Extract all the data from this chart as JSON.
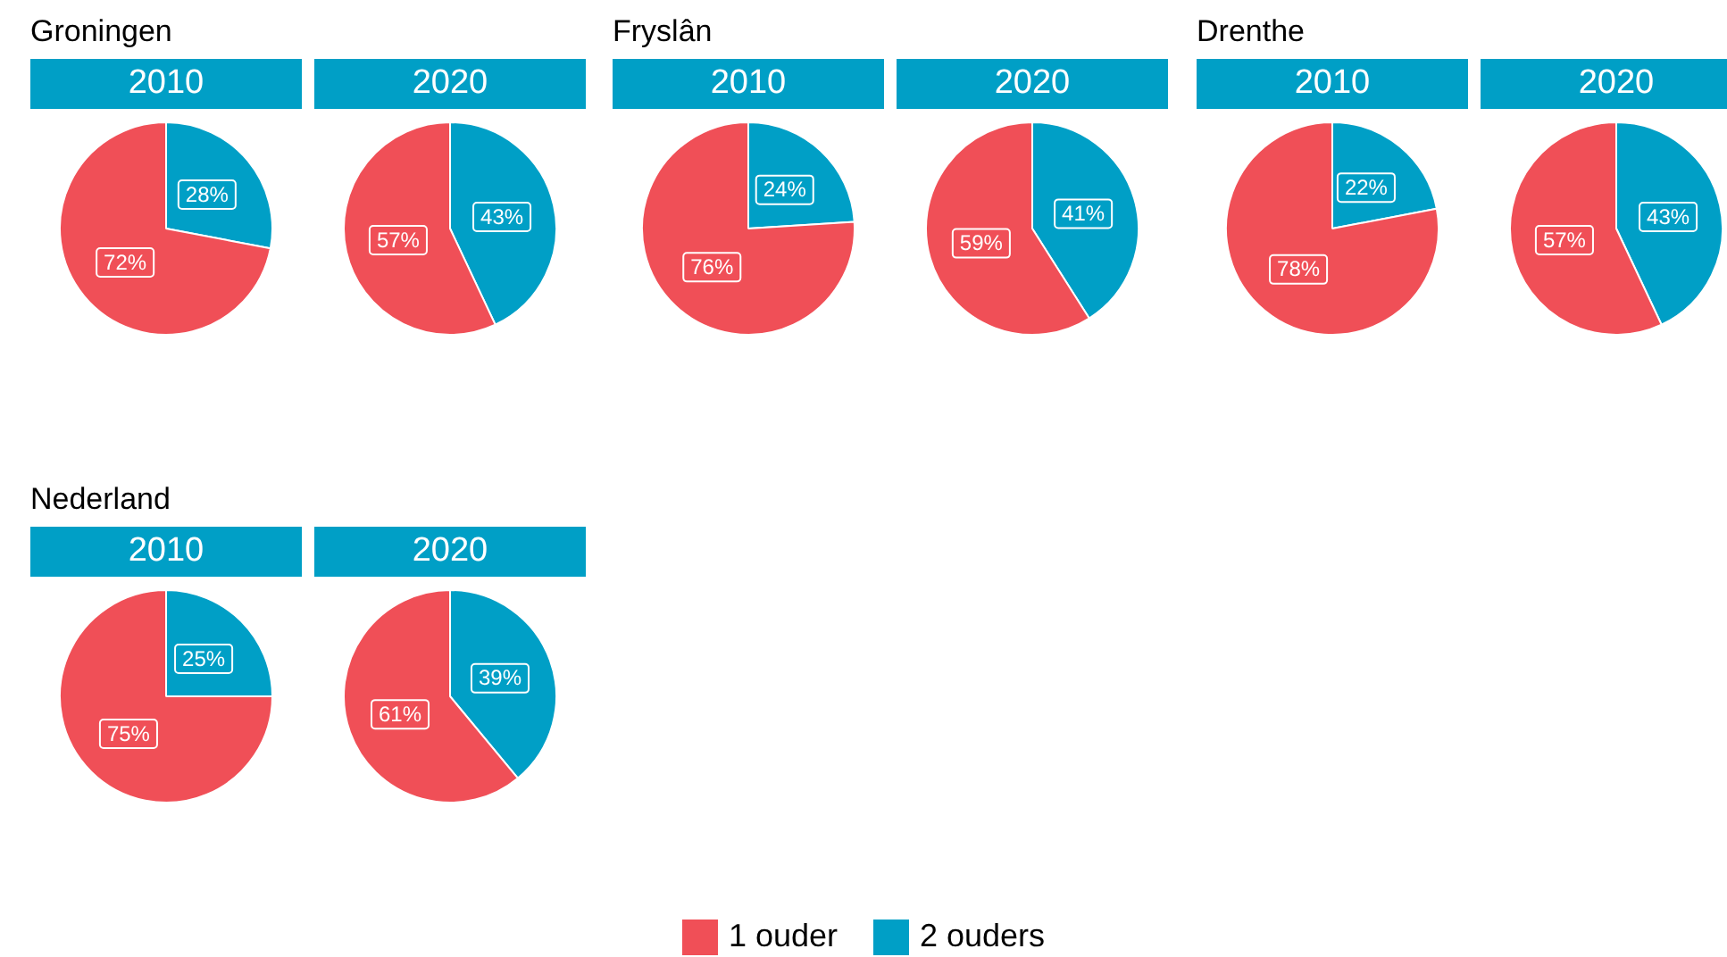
{
  "chart_data": {
    "type": "pie",
    "categories": [
      "1 ouder",
      "2 ouders"
    ],
    "colors": [
      "#f04f57",
      "#009fc6"
    ],
    "legend": "bottom",
    "annotations": [
      "Groningen",
      "Fryslân",
      "Drenthe",
      "Nederland"
    ],
    "series": [
      {
        "name": "2010",
        "values": [
          72,
          28
        ],
        "value_labels": [
          "72%",
          "28%"
        ]
      },
      {
        "name": "2020",
        "values": [
          57,
          43
        ],
        "value_labels": [
          "57%",
          "43%"
        ]
      },
      {
        "name": "2010",
        "values": [
          76,
          24
        ],
        "value_labels": [
          "76%",
          "24%"
        ]
      },
      {
        "name": "2020",
        "values": [
          59,
          41
        ],
        "value_labels": [
          "59%",
          "41%"
        ]
      },
      {
        "name": "2010",
        "values": [
          78,
          22
        ],
        "value_labels": [
          "78%",
          "22%"
        ]
      },
      {
        "name": "2020",
        "values": [
          57,
          43
        ],
        "value_labels": [
          "57%",
          "43%"
        ]
      },
      {
        "name": "2010",
        "values": [
          75,
          25
        ],
        "value_labels": [
          "75%",
          "25%"
        ]
      },
      {
        "name": "2020",
        "values": [
          61,
          39
        ],
        "value_labels": [
          "61%",
          "39%"
        ]
      }
    ]
  }
}
